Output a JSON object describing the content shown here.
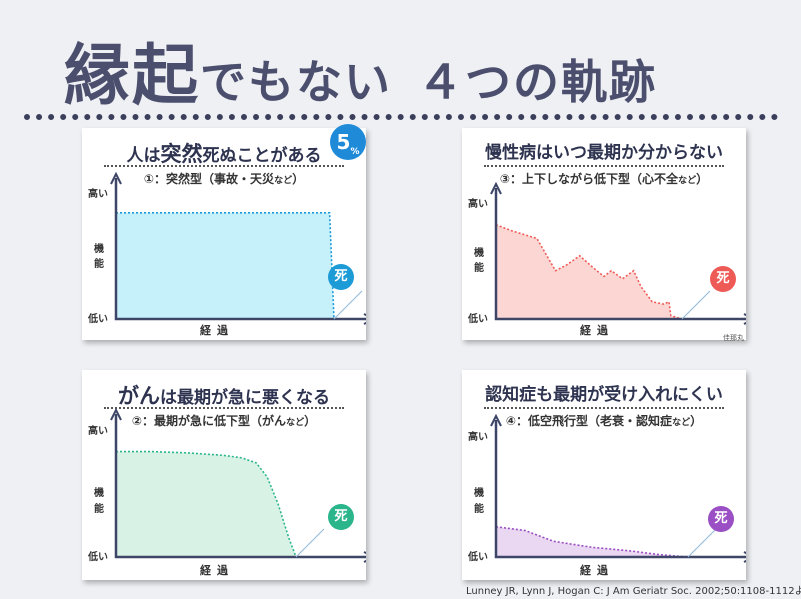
{
  "title": {
    "kanji1": "縁起",
    "kana": "でもない",
    "rest": "４つの軌跡"
  },
  "badge": {
    "num": "5",
    "unit": "%"
  },
  "credit": "Lunney JR, Lynn J, Hogan C: J Am Geriatr Soc. 2002;50:1108-1112より改変",
  "signature": "佳那丸",
  "axis": {
    "high": "高い",
    "func": "機能",
    "func1": "機",
    "func2": "能",
    "low": "低い",
    "x": "経過",
    "death": "死"
  },
  "panels": [
    {
      "id": "p1",
      "title_a": "人は",
      "title_b": "突然",
      "title_c": "死ぬことがある",
      "subtitle": "①：突然型（事故・天災",
      "subtitle_small": "など",
      "subtitle_end": "）",
      "color": "#1d9bd6",
      "fill": "#c6f1fb"
    },
    {
      "id": "p2",
      "title_a": "",
      "title_b": "慢性病はいつ最期か分からない",
      "title_c": "",
      "subtitle": "③：上下しながら低下型（心不全",
      "subtitle_small": "など",
      "subtitle_end": "）",
      "color": "#ee5b57",
      "fill": "#fbd6d3"
    },
    {
      "id": "p3",
      "title_a": "",
      "title_b": "がん",
      "title_c": "は最期が急に悪くなる",
      "subtitle": "②：最期が急に低下型（がん",
      "subtitle_small": "など",
      "subtitle_end": "）",
      "color": "#2ab58b",
      "fill": "#d8f2e6"
    },
    {
      "id": "p4",
      "title_a": "",
      "title_b": "認知症も最期が受け入れにくい",
      "title_c": "",
      "subtitle": "④：低空飛行型（老衰・認知症",
      "subtitle_small": "など",
      "subtitle_end": "）",
      "color": "#9b4fc4",
      "fill": "#ead7f1"
    }
  ],
  "chart_data": [
    {
      "type": "area",
      "name": "突然型",
      "x": [
        0,
        0.98,
        1.0
      ],
      "y": [
        0.85,
        0.85,
        0
      ],
      "xlabel": "経過",
      "ylabel": "機能"
    },
    {
      "type": "area",
      "name": "上下しながら低下型",
      "x": [
        0,
        0.08,
        0.22,
        0.32,
        0.38,
        0.45,
        0.52,
        0.58,
        0.62,
        0.68,
        0.74,
        0.78,
        0.84,
        0.9,
        0.93,
        0.94,
        1.0
      ],
      "y": [
        0.82,
        0.77,
        0.7,
        0.42,
        0.47,
        0.55,
        0.45,
        0.37,
        0.42,
        0.35,
        0.42,
        0.28,
        0.15,
        0.13,
        0.15,
        0.03,
        0
      ],
      "xlabel": "経過",
      "ylabel": "機能"
    },
    {
      "type": "area",
      "name": "最期が急に低下型",
      "x": [
        0,
        0.2,
        0.4,
        0.6,
        0.7,
        0.78,
        0.84,
        0.9,
        0.96,
        1.0
      ],
      "y": [
        0.83,
        0.83,
        0.82,
        0.8,
        0.78,
        0.74,
        0.63,
        0.42,
        0.15,
        0
      ],
      "xlabel": "経過",
      "ylabel": "機能"
    },
    {
      "type": "area",
      "name": "低空飛行型",
      "x": [
        0,
        0.15,
        0.3,
        0.5,
        0.7,
        0.85,
        1.0
      ],
      "y": [
        0.25,
        0.22,
        0.13,
        0.08,
        0.05,
        0.02,
        0
      ],
      "xlabel": "経過",
      "ylabel": "機能"
    }
  ]
}
